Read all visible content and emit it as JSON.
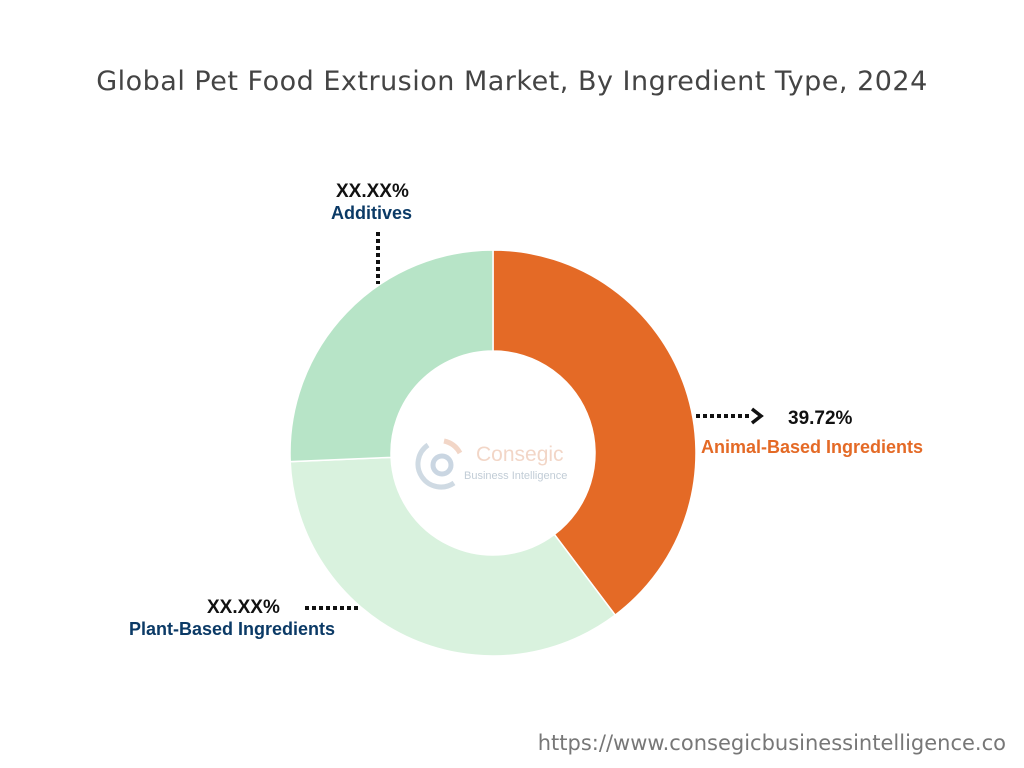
{
  "chart_data": {
    "type": "pie",
    "donut": true,
    "title": "Global Pet Food Extrusion Market, By Ingredient Type, 2024",
    "slices": [
      {
        "name": "Animal-Based Ingredients",
        "value": 39.72,
        "label": "39.72%",
        "color": "#E46A26",
        "label_color": "#E46A26"
      },
      {
        "name": "Plant-Based Ingredients",
        "value": 34.6,
        "label": "XX.XX%",
        "color": "#D9F2DE",
        "label_color": "#0B3A66"
      },
      {
        "name": "Additives",
        "value": 25.68,
        "label": "XX.XX%",
        "color": "#B7E4C7",
        "label_color": "#0B3A66"
      }
    ],
    "start": "top",
    "direction": "clockwise"
  },
  "watermark": {
    "brand": "Consegic",
    "tagline": "Business Intelligence"
  },
  "footer": {
    "url": "https://www.consegicbusinessintelligence.co"
  }
}
